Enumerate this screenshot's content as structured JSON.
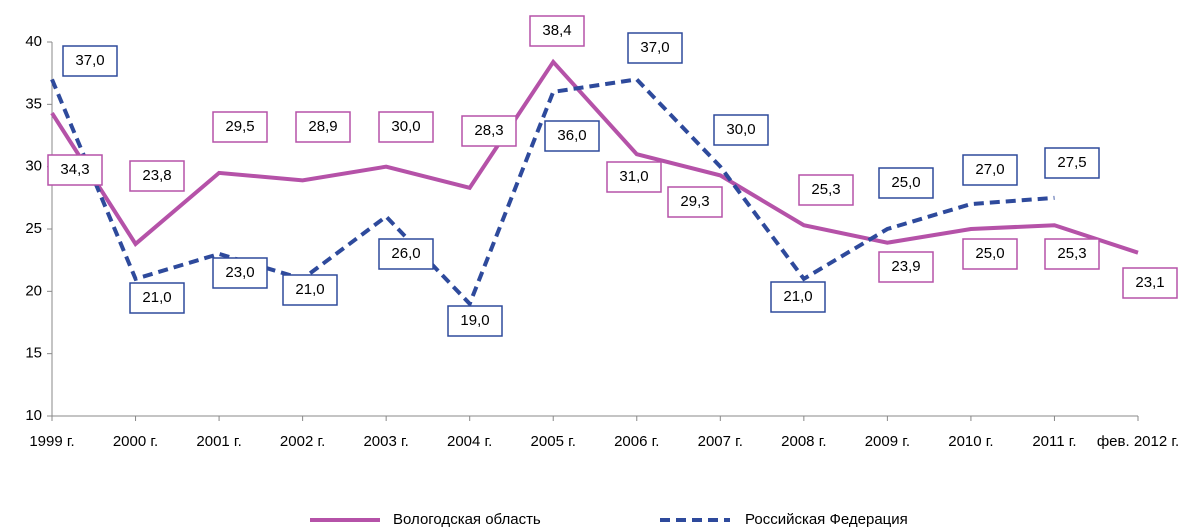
{
  "chart_data": {
    "type": "line",
    "categories": [
      "1999 г.",
      "2000 г.",
      "2001 г.",
      "2002 г.",
      "2003 г.",
      "2004 г.",
      "2005 г.",
      "2006 г.",
      "2007 г.",
      "2008 г.",
      "2009 г.",
      "2010 г.",
      "2011 г.",
      "фев. 2012 г."
    ],
    "series": [
      {
        "name": "Вологодская область",
        "color": "#b552a8",
        "dashed": false,
        "values": [
          34.3,
          23.8,
          29.5,
          28.9,
          30.0,
          28.3,
          38.4,
          31.0,
          29.3,
          25.3,
          23.9,
          25.0,
          25.3,
          23.1
        ],
        "value_labels": [
          "34,3",
          "23,8",
          "29,5",
          "28,9",
          "30,0",
          "28,3",
          "38,4",
          "31,0",
          "29,3",
          "25,3",
          "23,9",
          "25,0",
          "25,3",
          "23,1"
        ]
      },
      {
        "name": "Российская Федерация",
        "color": "#2e4a9c",
        "dashed": true,
        "values": [
          37.0,
          21.0,
          23.0,
          21.0,
          26.0,
          19.0,
          36.0,
          37.0,
          30.0,
          21.0,
          25.0,
          27.0,
          27.5,
          null
        ],
        "value_labels": [
          "37,0",
          "21,0",
          "23,0",
          "21,0",
          "26,0",
          "19,0",
          "36,0",
          "37,0",
          "30,0",
          "21,0",
          "25,0",
          "27,0",
          "27,5",
          null
        ]
      }
    ],
    "ylim": [
      10,
      40
    ],
    "yticks": [
      10,
      15,
      20,
      25,
      30,
      35,
      40
    ],
    "grid": false,
    "legend": "bottom"
  }
}
